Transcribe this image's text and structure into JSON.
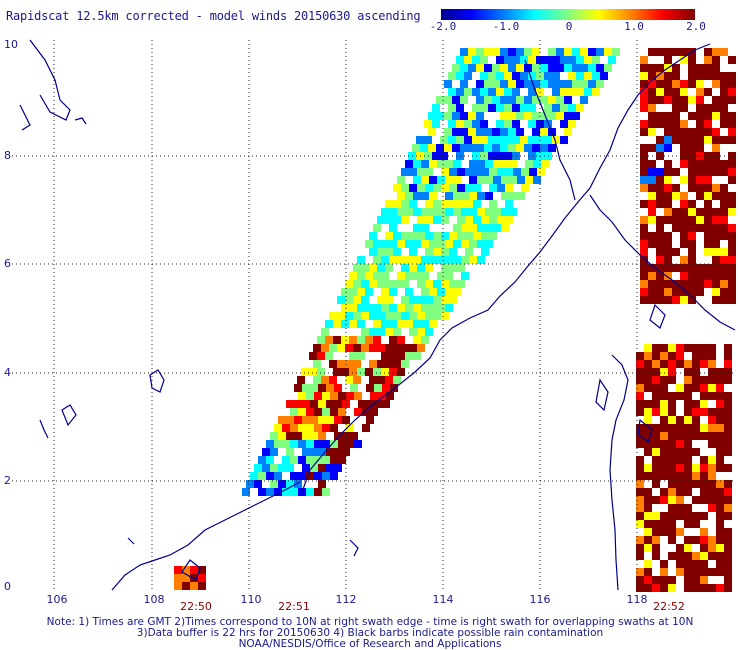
{
  "title": "Rapidscat 12.5km corrected - model winds 20150630 ascending",
  "colorbar": {
    "ticks": [
      "-2.0",
      "-1.0",
      "0",
      "1.0",
      "2.0"
    ],
    "colors": [
      "#00008f",
      "#0000ff",
      "#0080ff",
      "#00ffff",
      "#80ff80",
      "#ffff00",
      "#ff8000",
      "#ff0000",
      "#800000"
    ]
  },
  "axes": {
    "lon_ticks": [
      "106",
      "108",
      "110",
      "112",
      "114",
      "116",
      "118"
    ],
    "lat_ticks": [
      "0",
      "2",
      "4",
      "6",
      "8",
      "10"
    ]
  },
  "times": [
    "22:50",
    "22:51",
    "22:52"
  ],
  "notes": [
    "Note: 1) Times are GMT 2)Times correspond to 10N at right swath edge - time is right swath for overlapping swaths at 10N",
    "3)Data buffer is 22 hrs for 20150630 4) Black barbs indicate possible rain contamination",
    "NOAA/NESDIS/Office of Research and Applications"
  ],
  "map_colors": {
    "coast": "#00008b",
    "grid": "#333333",
    "land_mask": "#ffffff"
  }
}
